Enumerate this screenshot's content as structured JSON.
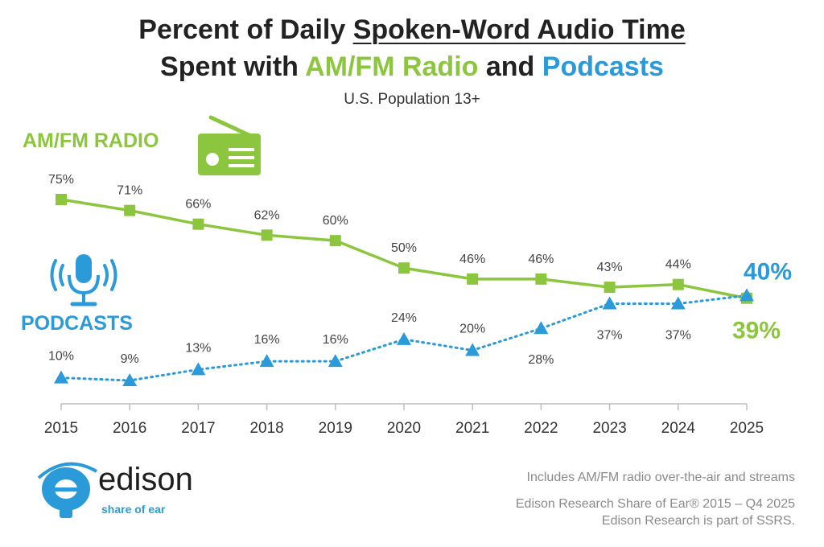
{
  "title": {
    "line1_prefix": "Percent of Daily ",
    "line1_underlined": "Spoken-Word Audio Time",
    "line2_prefix": "Spent with ",
    "line2_radio": "AM/FM Radio",
    "line2_mid": " and ",
    "line2_pod": "Podcasts"
  },
  "subtitle": "U.S. Population 13+",
  "labels": {
    "radio": "AM/FM RADIO",
    "podcasts": "PODCASTS"
  },
  "icons": {
    "radio": "radio-icon",
    "podcasts": "microphone-icon",
    "logo": "edison-logo-icon"
  },
  "colors": {
    "radio": "#8cc63f",
    "podcasts": "#2a9ad8",
    "title": "#222222",
    "footnote": "#8a8a8a"
  },
  "logo": {
    "word": "edison",
    "tagline": "share of ear"
  },
  "footnotes": {
    "line1": "Includes AM/FM radio over-the-air and streams",
    "line2": "Edison Research Share of Ear® 2015 – Q4 2025",
    "line3": "Edison Research is part of SSRS."
  },
  "chart_data": {
    "type": "line",
    "x": [
      "2015",
      "2016",
      "2017",
      "2018",
      "2019",
      "2020",
      "2021",
      "2022",
      "2023",
      "2024",
      "2025"
    ],
    "series": [
      {
        "name": "AM/FM RADIO",
        "values": [
          75,
          71,
          66,
          62,
          60,
          50,
          46,
          46,
          43,
          44,
          39
        ],
        "labels": [
          "75%",
          "71%",
          "66%",
          "62%",
          "60%",
          "50%",
          "46%",
          "46%",
          "43%",
          "44%",
          "39%"
        ],
        "color": "#8cc63f",
        "marker": "square",
        "line_style": "solid"
      },
      {
        "name": "PODCASTS",
        "values": [
          10,
          9,
          13,
          16,
          16,
          24,
          20,
          28,
          37,
          37,
          40
        ],
        "labels": [
          "10%",
          "9%",
          "13%",
          "16%",
          "16%",
          "24%",
          "20%",
          "28%",
          "37%",
          "37%",
          "40%"
        ],
        "color": "#2a9ad8",
        "marker": "triangle",
        "line_style": "dotted"
      }
    ],
    "ylim": [
      0,
      80
    ],
    "grid": false,
    "legend": "left inline labels"
  }
}
